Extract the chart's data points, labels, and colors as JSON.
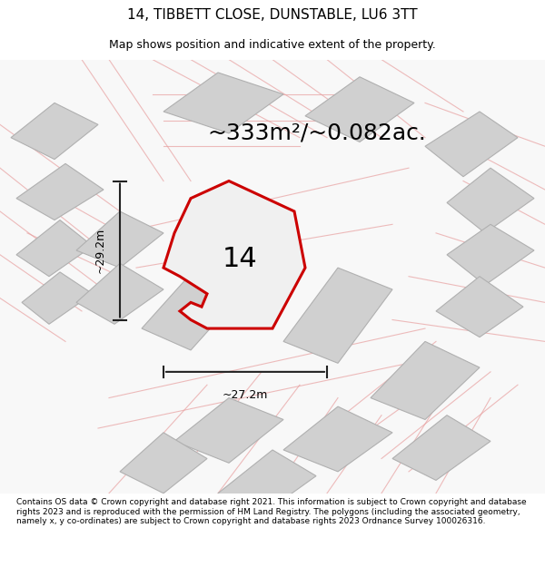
{
  "title": "14, TIBBETT CLOSE, DUNSTABLE, LU6 3TT",
  "subtitle": "Map shows position and indicative extent of the property.",
  "area_label": "~333m²/~0.082ac.",
  "number_label": "14",
  "width_label": "~27.2m",
  "height_label": "~29.2m",
  "footer": "Contains OS data © Crown copyright and database right 2021. This information is subject to Crown copyright and database rights 2023 and is reproduced with the permission of HM Land Registry. The polygons (including the associated geometry, namely x, y co-ordinates) are subject to Crown copyright and database rights 2023 Ordnance Survey 100026316.",
  "bg_color": "#ffffff",
  "map_bg": "#f5f5f5",
  "plot_color": "#cc0000",
  "plot_fill": "#f5f5f5",
  "road_color": "#e8a0a0",
  "building_color": "#d0d0d0",
  "building_edge": "#b0b0b0",
  "dim_color": "#222222",
  "title_fontsize": 11,
  "subtitle_fontsize": 9,
  "area_fontsize": 18,
  "number_fontsize": 22,
  "footer_fontsize": 7
}
